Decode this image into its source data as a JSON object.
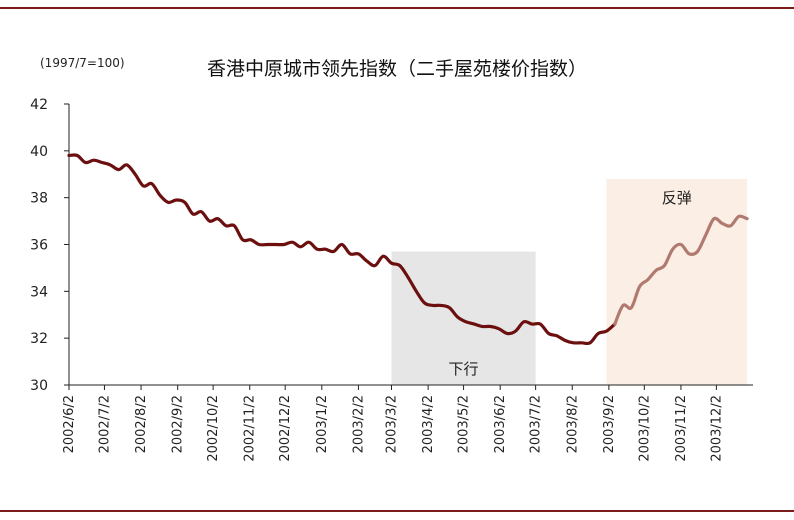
{
  "chart_data": {
    "type": "line",
    "title": "香港中原城市领先指数（二手屋苑楼价指数）",
    "unit_note": "(1997/7=100)",
    "xlabel": "",
    "ylabel": "",
    "ylim": [
      30,
      42
    ],
    "yticks": [
      30,
      32,
      34,
      36,
      38,
      40,
      42
    ],
    "x_tick_labels": [
      "2002/6/2",
      "2002/7/2",
      "2002/8/2",
      "2002/9/2",
      "2002/10/2",
      "2002/11/2",
      "2002/12/2",
      "2003/1/2",
      "2003/2/2",
      "2003/3/2",
      "2003/4/2",
      "2003/5/2",
      "2003/6/2",
      "2003/7/2",
      "2003/8/2",
      "2003/9/2",
      "2003/10/2",
      "2003/11/2",
      "2003/12/2"
    ],
    "grid": false,
    "series": [
      {
        "name": "",
        "x": [
          "2002/6/2",
          "2002/6/9",
          "2002/6/16",
          "2002/6/23",
          "2002/6/30",
          "2002/7/7",
          "2002/7/14",
          "2002/7/21",
          "2002/7/28",
          "2002/8/4",
          "2002/8/11",
          "2002/8/18",
          "2002/8/25",
          "2002/9/1",
          "2002/9/8",
          "2002/9/15",
          "2002/9/22",
          "2002/9/29",
          "2002/10/6",
          "2002/10/13",
          "2002/10/20",
          "2002/10/27",
          "2002/11/3",
          "2002/11/10",
          "2002/11/17",
          "2002/11/24",
          "2002/12/1",
          "2002/12/8",
          "2002/12/15",
          "2002/12/22",
          "2002/12/29",
          "2003/1/5",
          "2003/1/12",
          "2003/1/19",
          "2003/1/26",
          "2003/2/2",
          "2003/2/9",
          "2003/2/16",
          "2003/2/23",
          "2003/3/2",
          "2003/3/9",
          "2003/3/16",
          "2003/3/23",
          "2003/3/30",
          "2003/4/6",
          "2003/4/13",
          "2003/4/20",
          "2003/4/27",
          "2003/5/4",
          "2003/5/11",
          "2003/5/18",
          "2003/5/25",
          "2003/6/1",
          "2003/6/8",
          "2003/6/15",
          "2003/6/22",
          "2003/6/29",
          "2003/7/6",
          "2003/7/13",
          "2003/7/20",
          "2003/7/27",
          "2003/8/3",
          "2003/8/10",
          "2003/8/17",
          "2003/8/24",
          "2003/8/31",
          "2003/9/7",
          "2003/9/14",
          "2003/9/21",
          "2003/9/28",
          "2003/10/5",
          "2003/10/12",
          "2003/10/19",
          "2003/10/26",
          "2003/11/2",
          "2003/11/9",
          "2003/11/16",
          "2003/11/23",
          "2003/11/30",
          "2003/12/7",
          "2003/12/14",
          "2003/12/21",
          "2003/12/28"
        ],
        "values": [
          39.8,
          39.8,
          39.5,
          39.6,
          39.5,
          39.4,
          39.2,
          39.4,
          39.0,
          38.5,
          38.6,
          38.1,
          37.8,
          37.9,
          37.8,
          37.3,
          37.4,
          37.0,
          37.1,
          36.8,
          36.8,
          36.2,
          36.2,
          36.0,
          36.0,
          36.0,
          36.0,
          36.1,
          35.9,
          36.1,
          35.8,
          35.8,
          35.7,
          36.0,
          35.6,
          35.6,
          35.3,
          35.1,
          35.5,
          35.2,
          35.1,
          34.6,
          34.0,
          33.5,
          33.4,
          33.4,
          33.3,
          32.9,
          32.7,
          32.6,
          32.5,
          32.5,
          32.4,
          32.2,
          32.3,
          32.7,
          32.6,
          32.6,
          32.2,
          32.1,
          31.9,
          31.8,
          31.8,
          31.8,
          32.2,
          32.3,
          32.6,
          33.4,
          33.3,
          34.2,
          34.5,
          34.9,
          35.1,
          35.8,
          36.0,
          35.6,
          35.7,
          36.4,
          37.1,
          36.9,
          36.8,
          37.2,
          37.1
        ]
      }
    ],
    "colors": {
      "before": "#6b0f0f",
      "after": "#b07a70",
      "transition_date": "2003/9/7"
    },
    "annotations": [
      {
        "text": "下行",
        "start": "2003/3/2",
        "end": "2003/7/2",
        "top": 35.7,
        "color": "#e6e6e6"
      },
      {
        "text": "反弹",
        "start": "2003/8/31",
        "end": "2003/12/28",
        "top": 38.8,
        "color": "#fbeee4"
      }
    ]
  }
}
